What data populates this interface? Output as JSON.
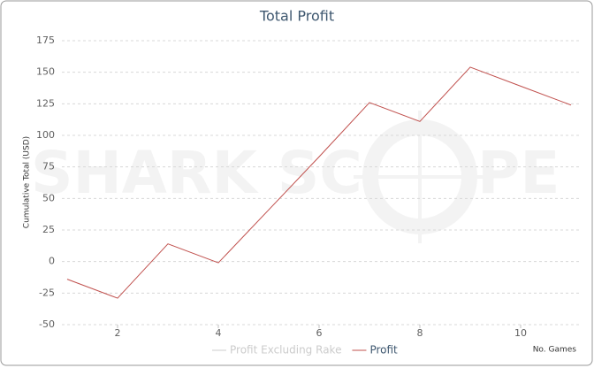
{
  "chart_data": {
    "type": "line",
    "title": "Total Profit",
    "x_label": "No. Games",
    "y_label": "Cumulative Total (USD)",
    "watermark": [
      "SHARK SC",
      "PE"
    ],
    "x": [
      1,
      2,
      3,
      4,
      5,
      6,
      7,
      8,
      9,
      10,
      11
    ],
    "series": [
      {
        "name": "Profit Excluding Rake",
        "color": "#cccccc",
        "values": [
          null,
          null,
          null,
          null,
          null,
          null,
          null,
          null,
          null,
          null,
          null
        ]
      },
      {
        "name": "Profit",
        "color": "#c0504d",
        "values": [
          -14,
          -29,
          14,
          -1,
          41,
          83,
          126,
          111,
          154,
          139,
          124
        ]
      }
    ],
    "xlim": [
      1,
      11
    ],
    "xticks": [
      2,
      4,
      6,
      8,
      10
    ],
    "ylim": [
      -50,
      175
    ],
    "yticks": [
      -50,
      -25,
      0,
      25,
      50,
      75,
      100,
      125,
      150,
      175
    ],
    "grid": true
  }
}
